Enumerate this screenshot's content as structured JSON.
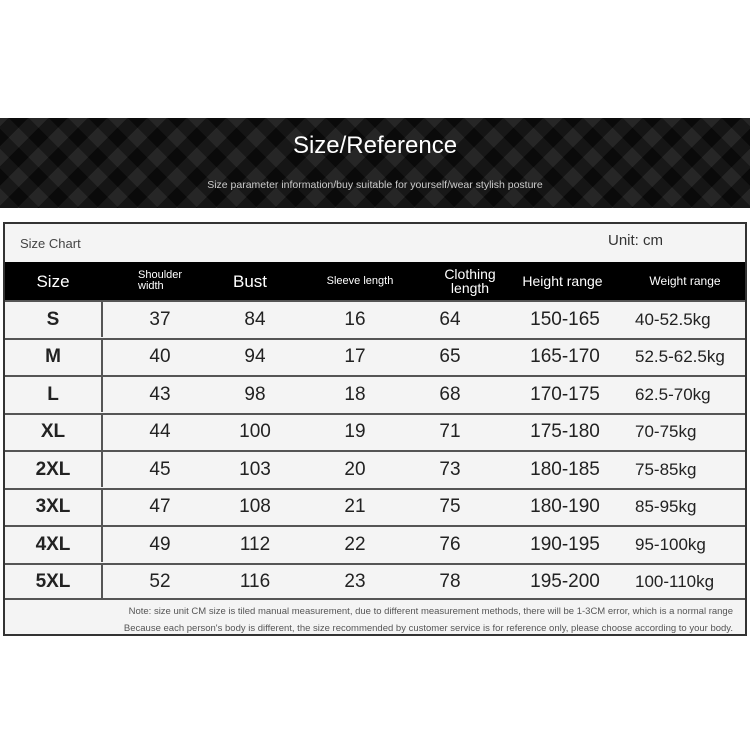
{
  "banner": {
    "title": "Size/Reference",
    "subtitle": "Size parameter information/buy suitable for yourself/wear stylish posture"
  },
  "table": {
    "caption": "Size Chart",
    "unit": "Unit: cm",
    "headers": [
      "Size",
      "Shoulder width",
      "Bust",
      "Sleeve length",
      "Clothing length",
      "Height range",
      "Weight range"
    ],
    "rows": [
      [
        "S",
        "37",
        "84",
        "16",
        "64",
        "150-165",
        "40-52.5kg"
      ],
      [
        "M",
        "40",
        "94",
        "17",
        "65",
        "165-170",
        "52.5-62.5kg"
      ],
      [
        "L",
        "43",
        "98",
        "18",
        "68",
        "170-175",
        "62.5-70kg"
      ],
      [
        "XL",
        "44",
        "100",
        "19",
        "71",
        "175-180",
        "70-75kg"
      ],
      [
        "2XL",
        "45",
        "103",
        "20",
        "73",
        "180-185",
        "75-85kg"
      ],
      [
        "3XL",
        "47",
        "108",
        "21",
        "75",
        "180-190",
        "85-95kg"
      ],
      [
        "4XL",
        "49",
        "112",
        "22",
        "76",
        "190-195",
        "95-100kg"
      ],
      [
        "5XL",
        "52",
        "116",
        "23",
        "78",
        "195-200",
        "100-110kg"
      ]
    ],
    "notes": [
      "Note: size unit CM size is tiled manual measurement, due to different measurement methods, there will be 1-3CM error, which is a normal range",
      "Because each person's body is different, the size recommended by customer service is for reference only, please choose according to your body."
    ]
  }
}
